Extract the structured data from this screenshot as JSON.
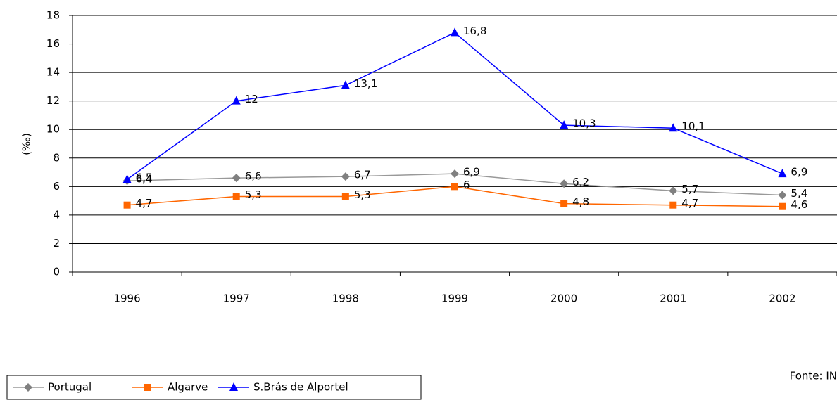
{
  "chart_data": {
    "type": "line",
    "y_label": "(‰)",
    "source": "Fonte: IN",
    "categories": [
      "1996",
      "1997",
      "1998",
      "1999",
      "2000",
      "2001",
      "2002"
    ],
    "series": [
      {
        "name": "Portugal",
        "color": "#999999",
        "marker_color": "#808080",
        "marker": "diamond",
        "values": [
          6.4,
          6.6,
          6.7,
          6.9,
          6.2,
          5.7,
          5.4
        ],
        "value_labels": [
          "6,4",
          "6,6",
          "6,7",
          "6,9",
          "6,2",
          "5,7",
          "5,4"
        ]
      },
      {
        "name": "Algarve",
        "color": "#ff6600",
        "marker_color": "#ff6600",
        "marker": "square",
        "values": [
          4.7,
          5.3,
          5.3,
          6,
          4.8,
          4.7,
          4.6
        ],
        "value_labels": [
          "4,7",
          "5,3",
          "5,3",
          "6",
          "4,8",
          "4,7",
          "4,6"
        ]
      },
      {
        "name": "S.Brás de Alportel",
        "color": "#0000ff",
        "marker_color": "#0000ff",
        "marker": "triangle",
        "values": [
          6.5,
          12,
          13.1,
          16.8,
          10.3,
          10.1,
          6.9
        ],
        "value_labels": [
          "6,5",
          "12",
          "13,1",
          "16,8",
          "10,3",
          "10,1",
          "6,9"
        ]
      }
    ],
    "ylim": [
      0,
      18
    ],
    "yticks": [
      0,
      2,
      4,
      6,
      8,
      10,
      12,
      14,
      16,
      18
    ],
    "grid": true
  }
}
